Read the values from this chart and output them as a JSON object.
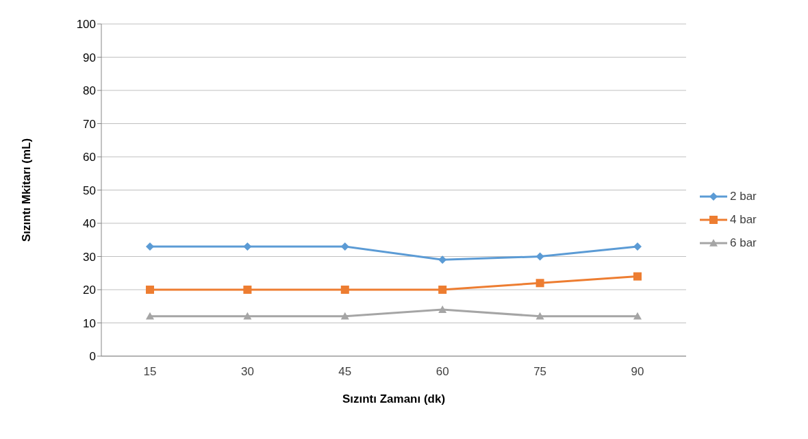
{
  "chart_data": {
    "type": "line",
    "xlabel": "Sızıntı Zamanı (dk)",
    "ylabel": "Sızıntı Mkitarı (mL)",
    "categories": [
      "15",
      "30",
      "45",
      "60",
      "75",
      "90"
    ],
    "series": [
      {
        "name": "2 bar",
        "color": "#5b9bd5",
        "marker": "diamond",
        "values": [
          33,
          33,
          33,
          29,
          30,
          33
        ]
      },
      {
        "name": "4 bar",
        "color": "#ed7d31",
        "marker": "square",
        "values": [
          20,
          20,
          20,
          20,
          22,
          24
        ]
      },
      {
        "name": "6 bar",
        "color": "#a5a5a5",
        "marker": "triangle",
        "values": [
          12,
          12,
          12,
          14,
          12,
          12
        ]
      }
    ],
    "ylim": [
      0,
      100
    ],
    "yticks": [
      0,
      10,
      20,
      30,
      40,
      50,
      60,
      70,
      80,
      90,
      100
    ],
    "grid": "y",
    "legend": "right",
    "line_style": "solid"
  }
}
